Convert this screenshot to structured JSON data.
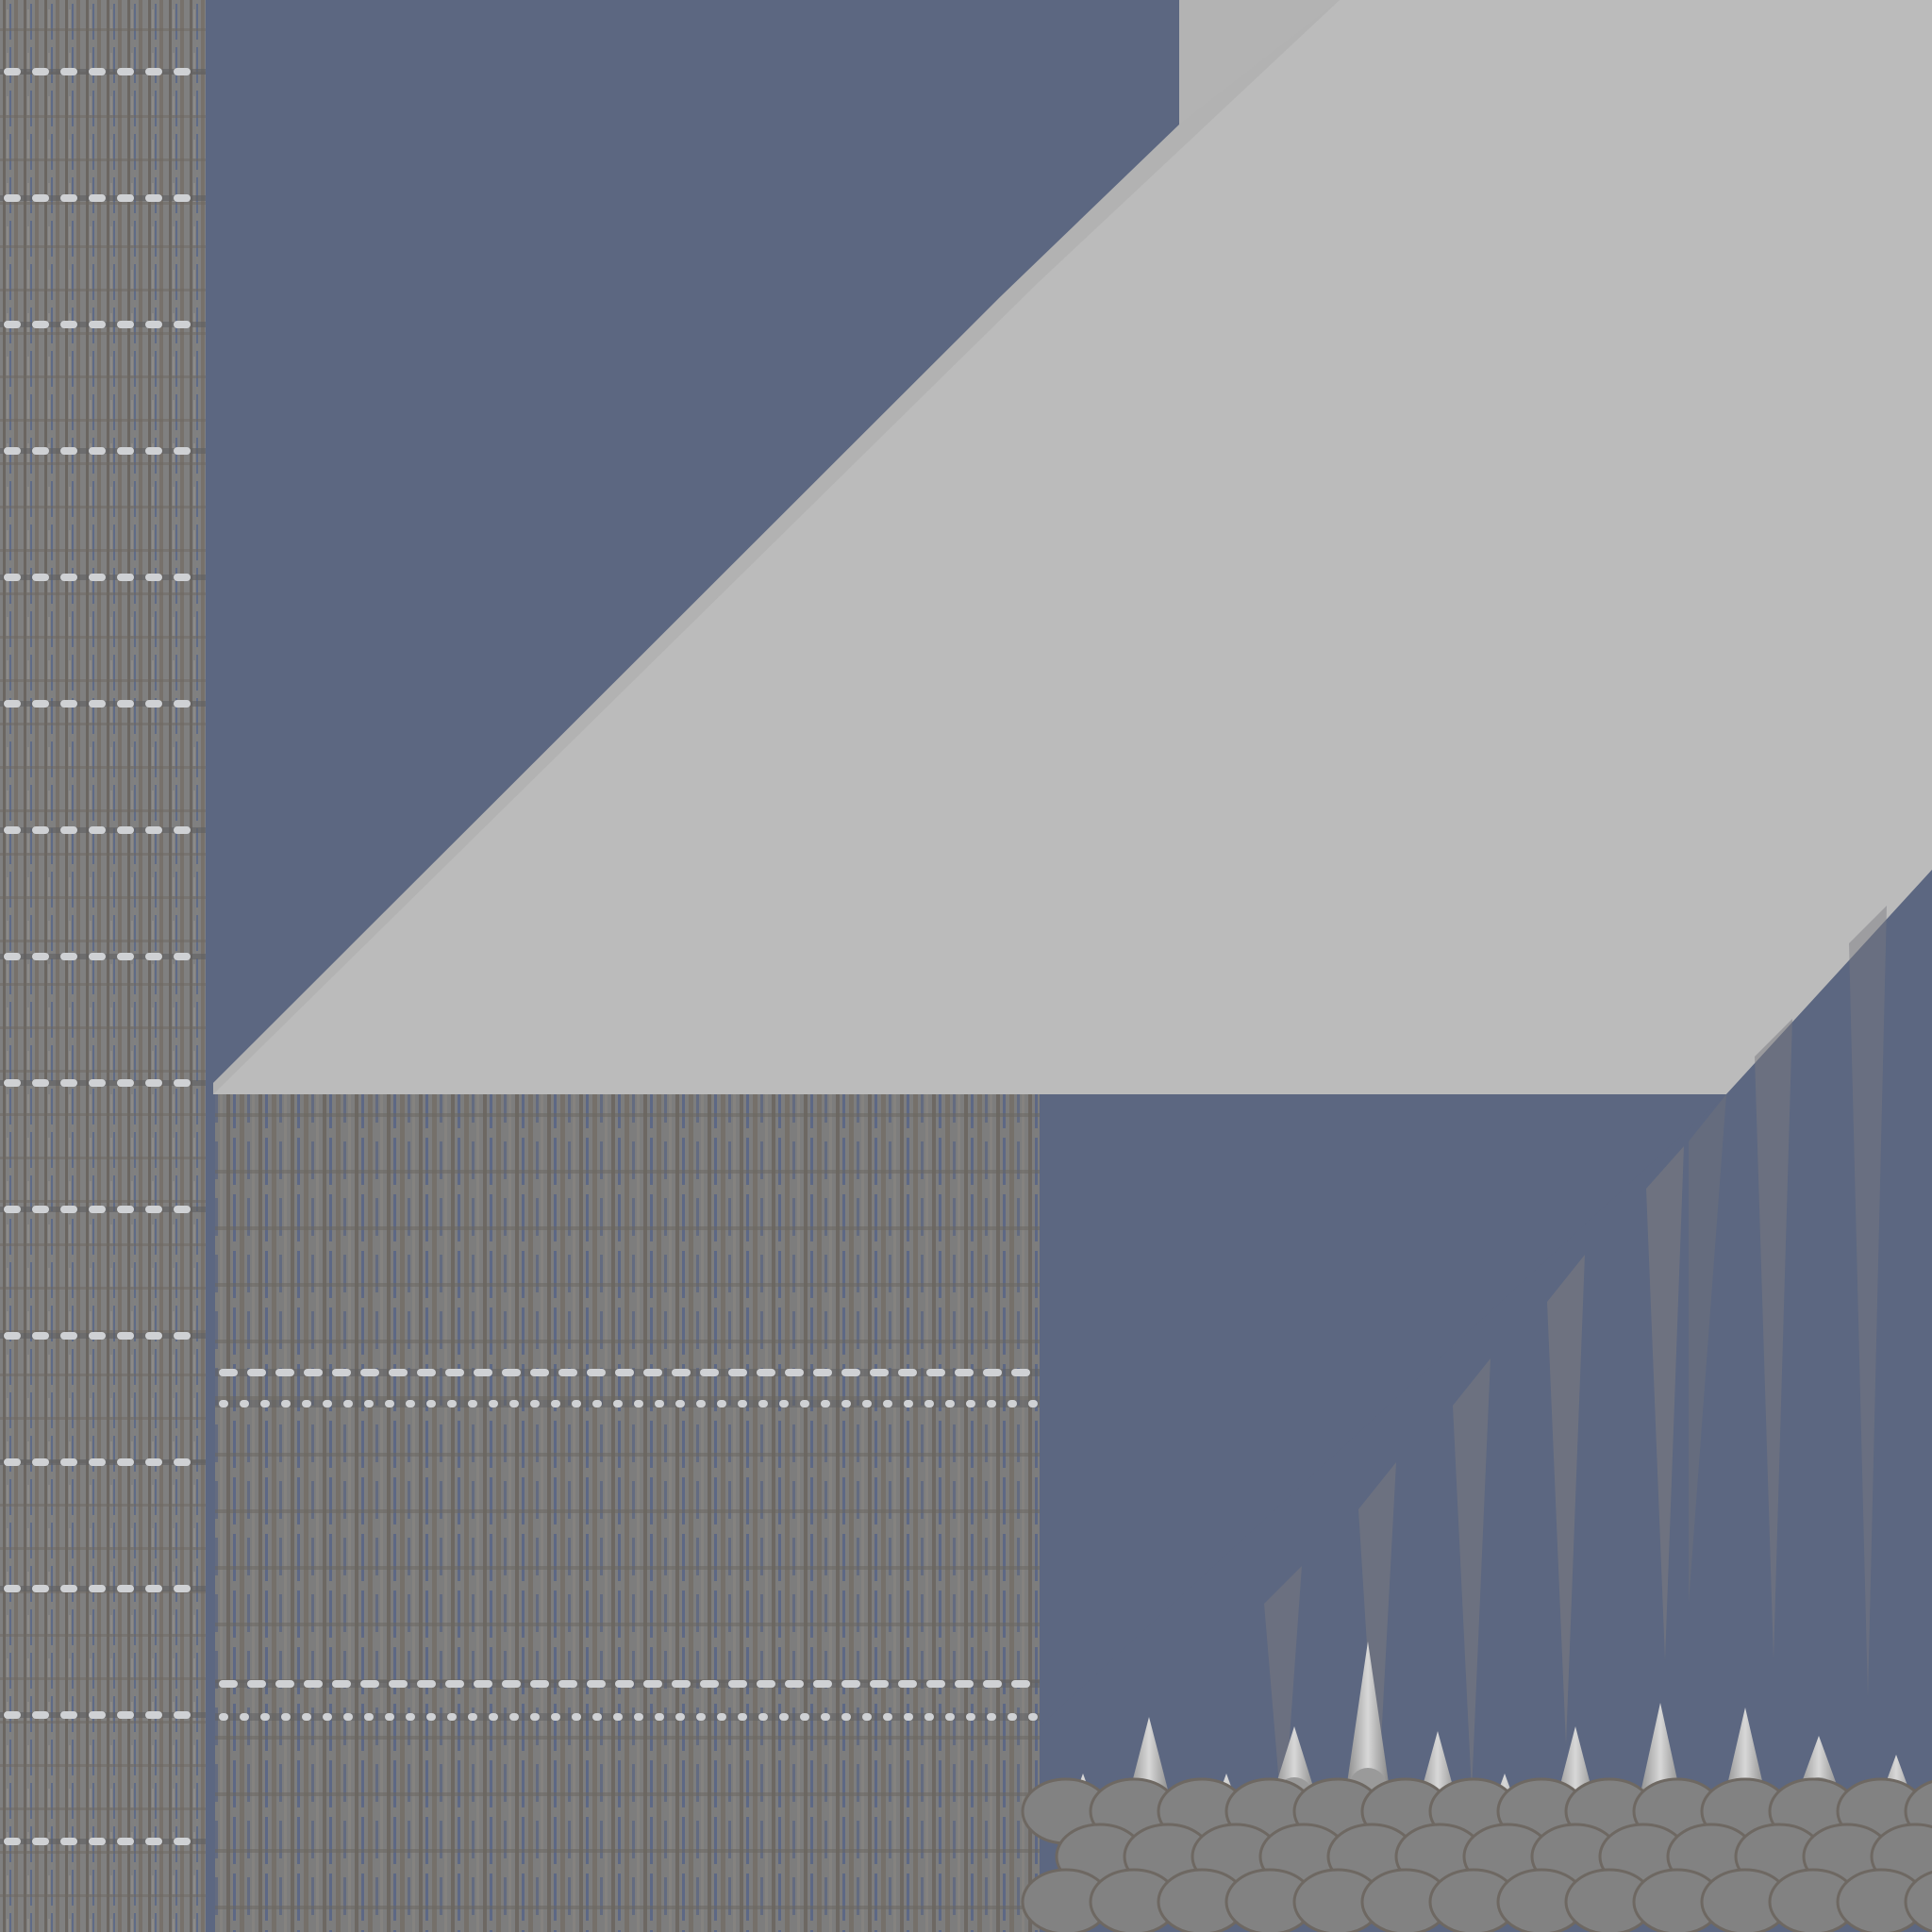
{
  "texture": {
    "colors": {
      "slate_blue": "#5c6781",
      "light_gray": "#bbbbbb",
      "top_band_gray": "#b3b3b3",
      "stone_gray": "#7f7f7f",
      "warm_gray": "#6e6862",
      "stripe_light": "#cfd1d4",
      "stripe_dark": "#5f5f61",
      "spike_light": "#d8d8d8",
      "spike_mid": "#9a9a9a",
      "scale_gray": "#828282"
    },
    "regions": [
      {
        "name": "left-grate-strip",
        "icon": "grate-texture"
      },
      {
        "name": "diagonal-light-panel",
        "icon": "flat-gray-panel"
      },
      {
        "name": "lower-grate-panel",
        "icon": "grate-texture"
      },
      {
        "name": "spike-row",
        "icon": "spike"
      },
      {
        "name": "scale-pattern",
        "icon": "scales"
      }
    ]
  }
}
